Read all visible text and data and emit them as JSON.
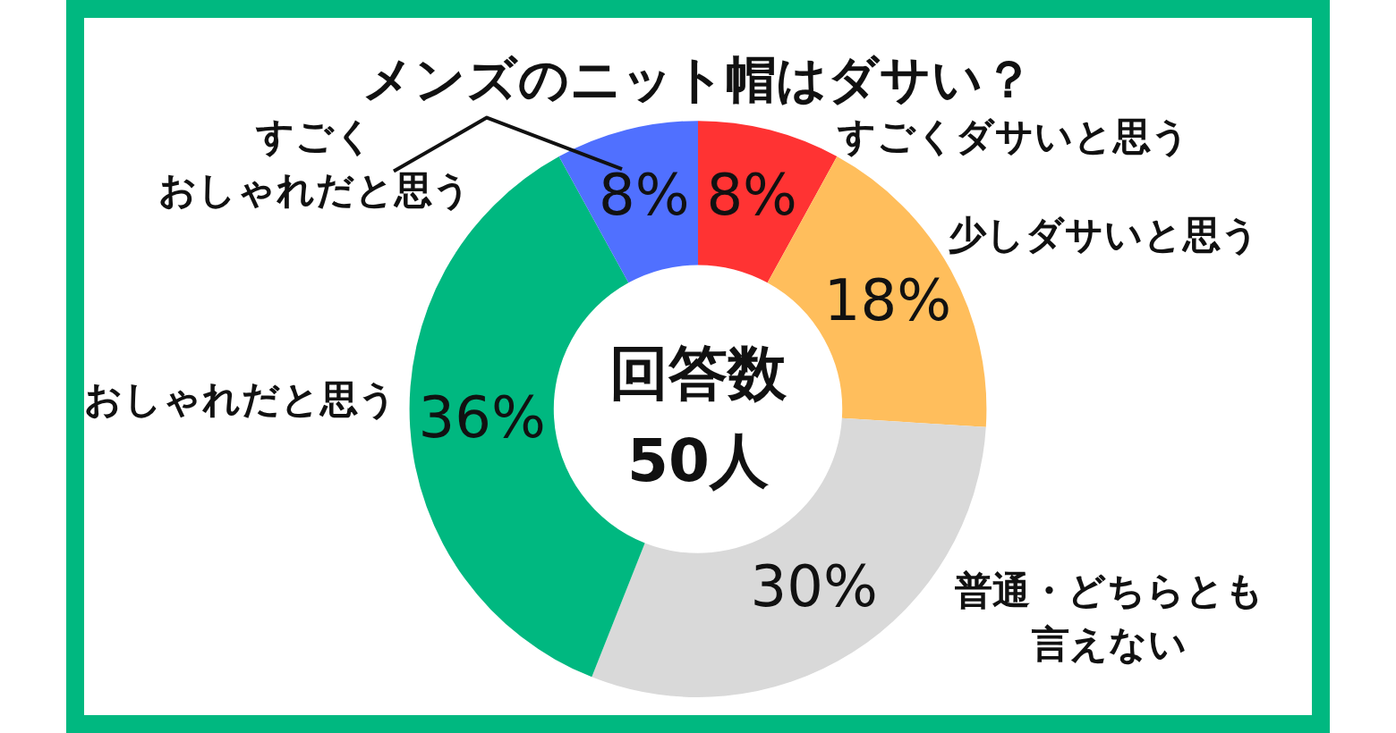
{
  "chart_data": {
    "type": "donut",
    "title": "メンズのニット帽はダサい？",
    "categories": [
      "すごくダサいと思う",
      "少しダサいと思う",
      "普通・どちらとも言えない",
      "おしゃれだと思う",
      "すごくおしゃれだと思う"
    ],
    "values": [
      8,
      18,
      30,
      36,
      8
    ],
    "colors": [
      "#ff3333",
      "#ffbe5c",
      "#d9d9d9",
      "#00b880",
      "#5070ff"
    ],
    "value_labels": [
      "8%",
      "18%",
      "30%",
      "36%",
      "8%"
    ],
    "annotations": [
      "回答数",
      "50人"
    ]
  }
}
